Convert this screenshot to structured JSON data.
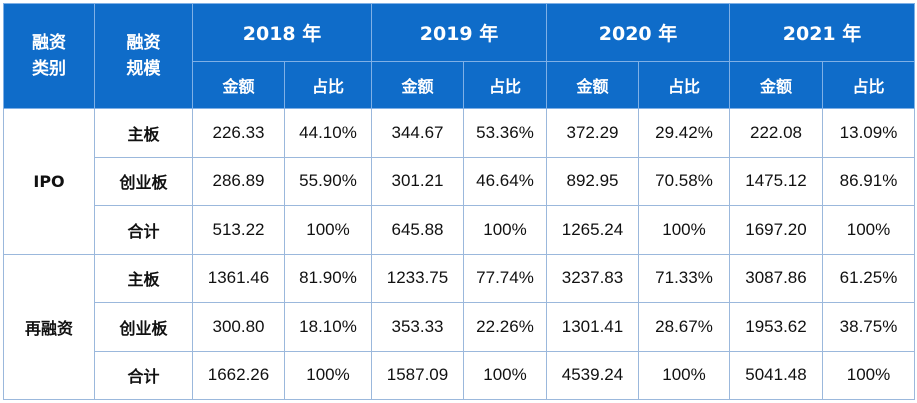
{
  "header": {
    "category": "融资\n类别",
    "scale": "融资\n规模",
    "years": [
      "2018 年",
      "2019 年",
      "2020 年",
      "2021 年"
    ],
    "amount_label": "金额",
    "share_label": "占比"
  },
  "groups": [
    {
      "category": "IPO",
      "rows": [
        {
          "scale": "主板",
          "cells": [
            "226.33",
            "44.10%",
            "344.67",
            "53.36%",
            "372.29",
            "29.42%",
            "222.08",
            "13.09%"
          ]
        },
        {
          "scale": "创业板",
          "cells": [
            "286.89",
            "55.90%",
            "301.21",
            "46.64%",
            "892.95",
            "70.58%",
            "1475.12",
            "86.91%"
          ]
        },
        {
          "scale": "合计",
          "cells": [
            "513.22",
            "100%",
            "645.88",
            "100%",
            "1265.24",
            "100%",
            "1697.20",
            "100%"
          ]
        }
      ]
    },
    {
      "category": "再融资",
      "rows": [
        {
          "scale": "主板",
          "cells": [
            "1361.46",
            "81.90%",
            "1233.75",
            "77.74%",
            "3237.83",
            "71.33%",
            "3087.86",
            "61.25%"
          ]
        },
        {
          "scale": "创业板",
          "cells": [
            "300.80",
            "18.10%",
            "353.33",
            "22.26%",
            "1301.41",
            "28.67%",
            "1953.62",
            "38.75%"
          ]
        },
        {
          "scale": "合计",
          "cells": [
            "1662.26",
            "100%",
            "1587.09",
            "100%",
            "4539.24",
            "100%",
            "5041.48",
            "100%"
          ]
        }
      ]
    }
  ]
}
